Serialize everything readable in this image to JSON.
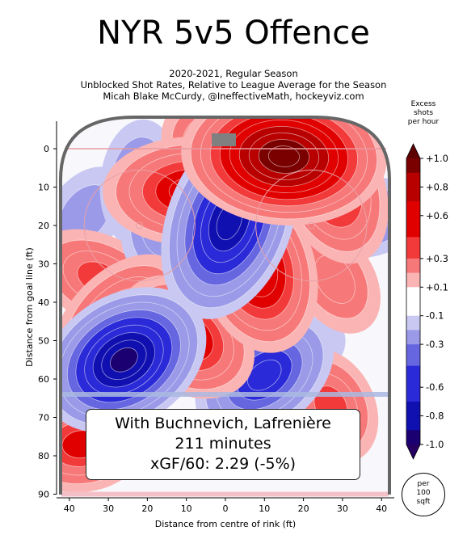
{
  "title": "NYR 5v5 Offence",
  "subtitle_lines": [
    "2020-2021, Regular Season",
    "Unblocked Shot Rates, Relative to League Average for the Season",
    "Micah Blake McCurdy, @IneffectiveMath, hockeyviz.com"
  ],
  "info": {
    "line1": "With Buchnevich, Lafrenière",
    "line2": "211 minutes",
    "line3": "xGF/60: 2.29 (-5%)"
  },
  "colorbar_title": [
    "Excess",
    "shots",
    "per hour"
  ],
  "unit_note": [
    "per",
    "100",
    "sqft"
  ],
  "chart_data": {
    "type": "heatmap",
    "xlabel": "Distance from centre of rink (ft)",
    "ylabel": "Distance from goal line (ft)",
    "xlim": [
      -42,
      42
    ],
    "ylim": [
      -4,
      90
    ],
    "x_ticks": [
      "40",
      "30",
      "20",
      "10",
      "0",
      "10",
      "20",
      "30",
      "40"
    ],
    "x_tick_values": [
      -40,
      -30,
      -20,
      -10,
      0,
      10,
      20,
      30,
      40
    ],
    "y_ticks": [
      0,
      10,
      20,
      30,
      40,
      50,
      60,
      70,
      80,
      90
    ],
    "colorbar": {
      "labels": [
        "+1.0",
        "+0.8",
        "+0.6",
        "+0.3",
        "+0.1",
        "-0.1",
        "-0.3",
        "-0.6",
        "-0.8",
        "-1.0"
      ],
      "levels": [
        1.0,
        0.8,
        0.6,
        0.3,
        0.1,
        -0.1,
        -0.3,
        -0.6,
        -0.8,
        -1.0
      ]
    },
    "hotspots": [
      {
        "x": 15,
        "y": 2,
        "value": 1.0
      },
      {
        "x": 2,
        "y": 2,
        "value": 0.6
      },
      {
        "x": 27,
        "y": 9,
        "value": 0.6
      },
      {
        "x": -9,
        "y": 11,
        "value": 0.65
      },
      {
        "x": 8,
        "y": 31,
        "value": 0.75
      },
      {
        "x": -27,
        "y": 44,
        "value": 0.5
      },
      {
        "x": -32,
        "y": 34,
        "value": 0.4
      },
      {
        "x": -10,
        "y": 49,
        "value": 0.65
      },
      {
        "x": 28,
        "y": 34,
        "value": 0.3
      },
      {
        "x": 27,
        "y": 67,
        "value": 0.4
      },
      {
        "x": -37,
        "y": 77,
        "value": 0.5
      },
      {
        "x": 22,
        "y": 45,
        "value": 0.15
      },
      {
        "x": 1,
        "y": 19,
        "value": -0.85
      },
      {
        "x": 4,
        "y": 10,
        "value": -0.6
      },
      {
        "x": -15,
        "y": 18,
        "value": -0.45
      },
      {
        "x": -22,
        "y": 9,
        "value": -0.3
      },
      {
        "x": -26,
        "y": 55,
        "value": -0.9
      },
      {
        "x": 10,
        "y": 59,
        "value": -0.6
      },
      {
        "x": 4,
        "y": 46,
        "value": -0.3
      },
      {
        "x": 36,
        "y": 18,
        "value": -0.3
      },
      {
        "x": -36,
        "y": 17,
        "value": -0.2
      },
      {
        "x": 18,
        "y": 48,
        "value": -0.25
      },
      {
        "x": -20,
        "y": 38,
        "value": -0.2
      }
    ]
  }
}
